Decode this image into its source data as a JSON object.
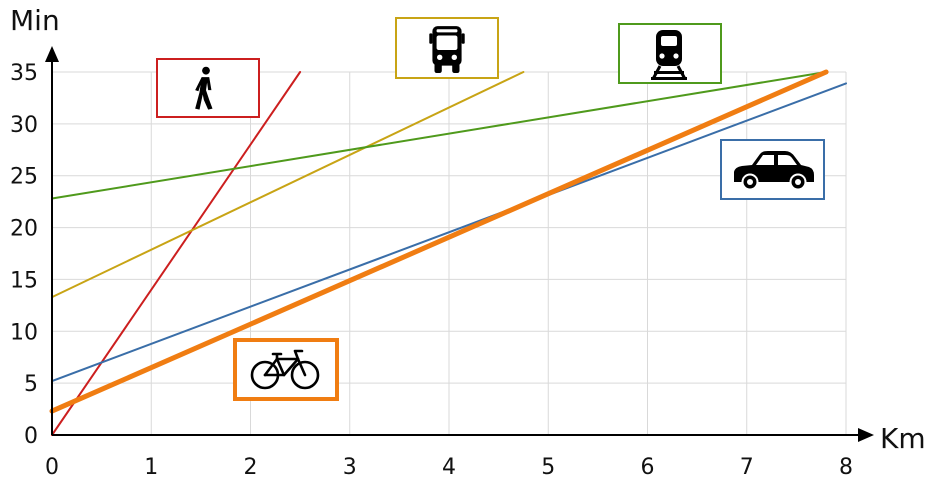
{
  "chart_data": {
    "type": "line",
    "xlabel": "Km",
    "ylabel": "Min",
    "xlim": [
      0,
      8
    ],
    "ylim": [
      0,
      35
    ],
    "x_ticks": [
      "0",
      "1",
      "2",
      "3",
      "4",
      "5",
      "6",
      "7",
      "8"
    ],
    "y_ticks": [
      "0",
      "5",
      "10",
      "15",
      "20",
      "25",
      "30",
      "35"
    ],
    "grid": true,
    "series": [
      {
        "icon": "pedestrian-icon",
        "color": "#cc1f1f",
        "width": 2,
        "points": [
          [
            0,
            0
          ],
          [
            2.5,
            35
          ]
        ]
      },
      {
        "icon": "bus-icon",
        "color": "#c8a415",
        "width": 2,
        "points": [
          [
            0,
            13.3
          ],
          [
            4.75,
            35
          ]
        ]
      },
      {
        "icon": "train-icon",
        "color": "#4f9a1c",
        "width": 2,
        "points": [
          [
            0,
            22.8
          ],
          [
            7.8,
            35
          ]
        ]
      },
      {
        "icon": "car-icon",
        "color": "#3a6ea8",
        "width": 2,
        "points": [
          [
            0,
            5.2
          ],
          [
            8,
            33.9
          ]
        ]
      },
      {
        "icon": "bicycle-icon",
        "color": "#f07d12",
        "width": 5,
        "points": [
          [
            0,
            2.3
          ],
          [
            7.8,
            35
          ]
        ]
      }
    ]
  }
}
